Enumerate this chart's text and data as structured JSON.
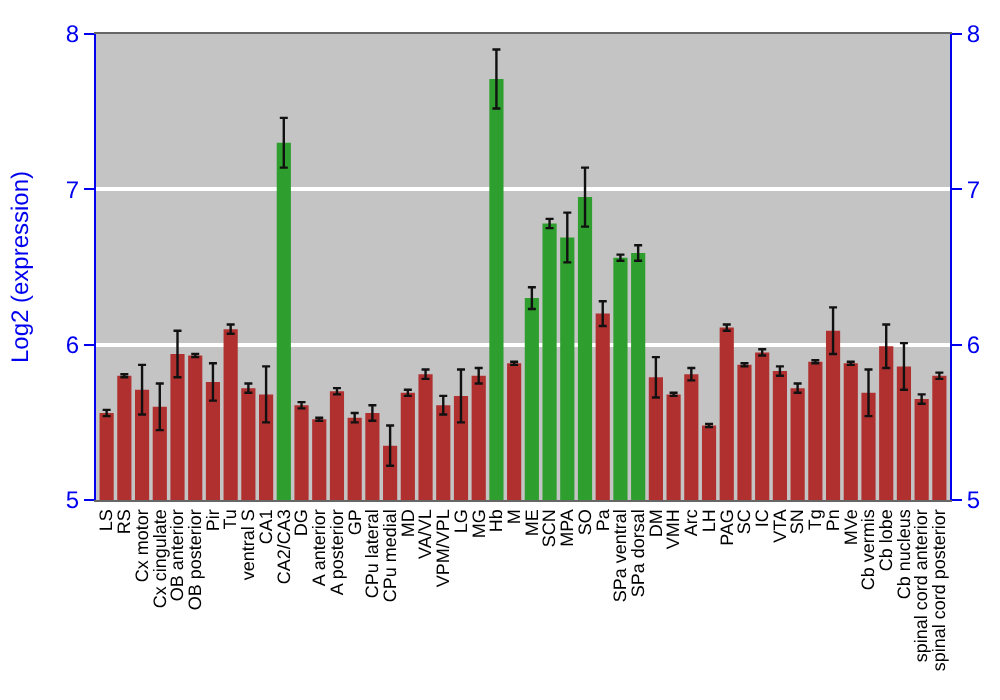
{
  "chart_data": {
    "type": "bar",
    "ylabel": "Log2 (expression)",
    "categories": [
      "LS",
      "RS",
      "Cx motor",
      "Cx cingulate",
      "OB anterior",
      "OB posterior",
      "Pir",
      "Tu",
      "ventral S",
      "CA1",
      "CA2/CA3",
      "DG",
      "A anterior",
      "A posterior",
      "GP",
      "CPu lateral",
      "CPu medial",
      "MD",
      "VA/VL",
      "VPM/VPL",
      "LG",
      "MG",
      "Hb",
      "M",
      "ME",
      "SCN",
      "MPA",
      "SO",
      "Pa",
      "SPa ventral",
      "SPa dorsal",
      "DM",
      "VMH",
      "Arc",
      "LH",
      "PAG",
      "SC",
      "IC",
      "VTA",
      "SN",
      "Tg",
      "Pn",
      "MVe",
      "Cb vermis",
      "Cb lobe",
      "Cb nucleus",
      "spinal cord anterior",
      "spinal cord posterior"
    ],
    "values": [
      5.56,
      5.8,
      5.71,
      5.6,
      5.94,
      5.93,
      5.76,
      6.1,
      5.72,
      5.68,
      7.3,
      5.61,
      5.52,
      5.7,
      5.53,
      5.56,
      5.35,
      5.69,
      5.81,
      5.61,
      5.67,
      5.8,
      7.71,
      5.88,
      6.3,
      6.78,
      6.69,
      6.95,
      6.2,
      6.56,
      6.59,
      5.79,
      5.68,
      5.81,
      5.48,
      6.11,
      5.87,
      5.95,
      5.83,
      5.72,
      5.89,
      6.09,
      5.88,
      5.69,
      5.99,
      5.86,
      5.65,
      5.8
    ],
    "errors": [
      0.02,
      0.01,
      0.16,
      0.15,
      0.15,
      0.01,
      0.12,
      0.03,
      0.03,
      0.18,
      0.16,
      0.02,
      0.01,
      0.02,
      0.03,
      0.05,
      0.13,
      0.02,
      0.03,
      0.06,
      0.17,
      0.05,
      0.19,
      0.01,
      0.07,
      0.03,
      0.16,
      0.19,
      0.08,
      0.02,
      0.05,
      0.13,
      0.01,
      0.04,
      0.01,
      0.02,
      0.01,
      0.02,
      0.03,
      0.03,
      0.01,
      0.15,
      0.01,
      0.15,
      0.14,
      0.15,
      0.03,
      0.02
    ],
    "colors": [
      "#b03030",
      "#b03030",
      "#b03030",
      "#b03030",
      "#b03030",
      "#b03030",
      "#b03030",
      "#b03030",
      "#b03030",
      "#b03030",
      "#2e9e2e",
      "#b03030",
      "#b03030",
      "#b03030",
      "#b03030",
      "#b03030",
      "#b03030",
      "#b03030",
      "#b03030",
      "#b03030",
      "#b03030",
      "#b03030",
      "#2e9e2e",
      "#b03030",
      "#2e9e2e",
      "#2e9e2e",
      "#2e9e2e",
      "#2e9e2e",
      "#b03030",
      "#2e9e2e",
      "#2e9e2e",
      "#b03030",
      "#b03030",
      "#b03030",
      "#b03030",
      "#b03030",
      "#b03030",
      "#b03030",
      "#b03030",
      "#b03030",
      "#b03030",
      "#b03030",
      "#b03030",
      "#b03030",
      "#b03030",
      "#b03030",
      "#b03030",
      "#b03030"
    ],
    "ylim": [
      5,
      8
    ],
    "yticks": [
      5,
      6,
      7,
      8
    ],
    "y2lim": [
      5,
      8
    ],
    "y2ticks": [
      5,
      6,
      7,
      8
    ],
    "grid": "y"
  }
}
